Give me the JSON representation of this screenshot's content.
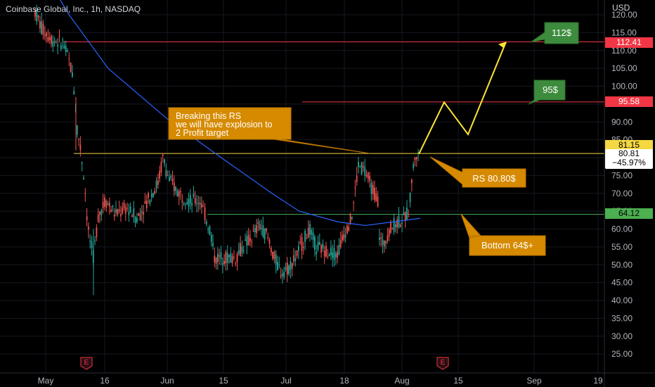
{
  "header": {
    "title": "Coinbase Global, Inc., 1h, NASDAQ"
  },
  "axis": {
    "currency": "USD",
    "y_ticks": [
      "120.00",
      "115.00",
      "110.00",
      "105.00",
      "100.00",
      "95.00",
      "90.00",
      "85.00",
      "80.00",
      "75.00",
      "70.00",
      "65.00",
      "60.00",
      "55.00",
      "50.00",
      "45.00",
      "40.00",
      "35.00",
      "30.00",
      "25.00"
    ],
    "x_ticks": [
      "May",
      "16",
      "Jun",
      "15",
      "Jul",
      "18",
      "Aug",
      "15",
      "Sep",
      "19"
    ]
  },
  "price_labels": {
    "line_112": "112.41",
    "line_95": "95.58",
    "resistance": "81.15",
    "current_price": "80.81",
    "current_change": "−45.97%",
    "support": "64.12"
  },
  "annotations": {
    "note": [
      "Breaking this RS",
      "we will have explosion to",
      "2 Profit target"
    ],
    "target_112": "112$",
    "target_95": "95$",
    "rs_label": "RS 80.80$",
    "bottom_label": "Bottom 64$+"
  },
  "earnings_marker": "E",
  "colors": {
    "up": "#26a69a",
    "down": "#ef5350",
    "ma": "#2962ff",
    "resistance": "#f5d742",
    "support": "#4caf50",
    "red_line": "#f23645",
    "annotation_orange": "#d68a00",
    "annotation_green": "#3d8c3d",
    "projection": "#ffe433"
  },
  "chart_data": {
    "type": "candlestick",
    "title": "Coinbase Global, Inc., 1h, NASDAQ",
    "ylim": [
      22,
      122
    ],
    "horizontal_levels": [
      {
        "name": "112.41",
        "value": 112.41
      },
      {
        "name": "95.58",
        "value": 95.58
      },
      {
        "name": "RS 80.80$",
        "value": 81.15
      },
      {
        "name": "Bottom 64$+",
        "value": 64.12
      }
    ],
    "projection_path": [
      {
        "x": "Aug 6",
        "y": 81
      },
      {
        "x": "Aug 10",
        "y": 95.5
      },
      {
        "x": "Aug 13",
        "y": 86.5
      },
      {
        "x": "Aug 26",
        "y": 112.4
      }
    ],
    "ma_series": [
      {
        "x": "May 1",
        "y": 131
      },
      {
        "x": "May 7",
        "y": 120
      },
      {
        "x": "May 17",
        "y": 105
      },
      {
        "x": "Jun 1",
        "y": 91
      },
      {
        "x": "Jun 15",
        "y": 80
      },
      {
        "x": "Jun 28",
        "y": 70
      },
      {
        "x": "Jul 5",
        "y": 65
      },
      {
        "x": "Jul 15",
        "y": 62
      },
      {
        "x": "Jul 22",
        "y": 61
      },
      {
        "x": "Jul 29",
        "y": 62
      },
      {
        "x": "Aug 5",
        "y": 63
      }
    ]
  }
}
